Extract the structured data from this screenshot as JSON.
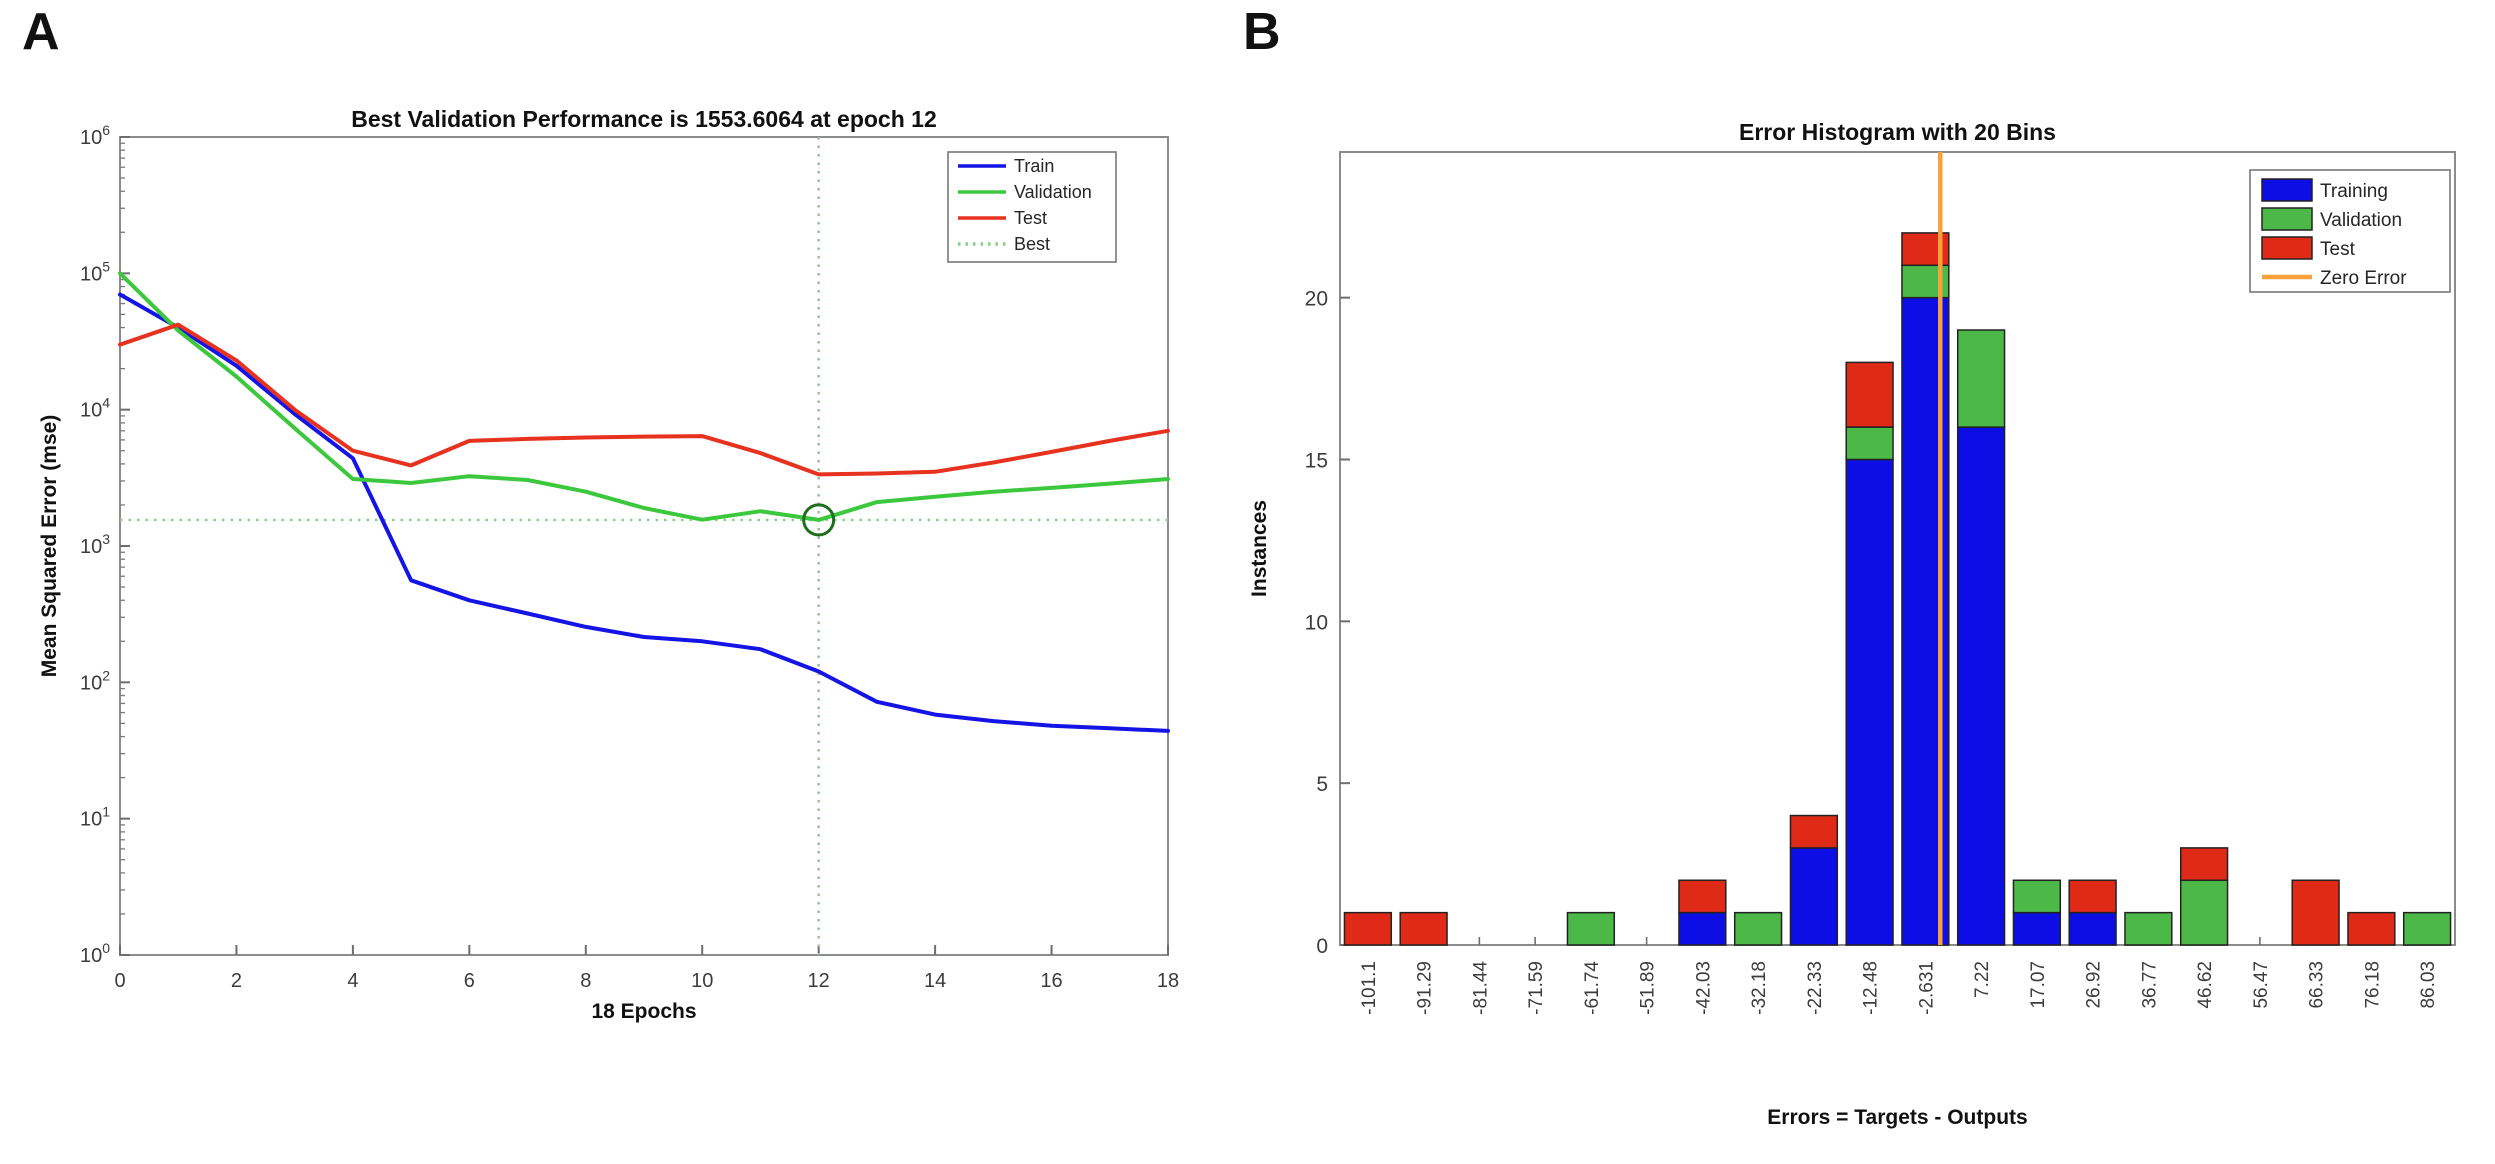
{
  "page": {
    "background": "#ffffff"
  },
  "chart_data": [
    {
      "panel_label": "A",
      "type": "line",
      "title": "Best Validation Performance is 1553.6064 at epoch 12",
      "xlabel": "18 Epochs",
      "ylabel": "Mean Squared Error  (mse)",
      "x_ticks": [
        0,
        2,
        4,
        6,
        8,
        10,
        12,
        14,
        16,
        18
      ],
      "xlim": [
        0,
        18
      ],
      "y_scale": "log10",
      "y_tick_exponents": [
        0,
        1,
        2,
        3,
        4,
        5,
        6
      ],
      "ylim": [
        1,
        1000000
      ],
      "epochs": [
        0,
        1,
        2,
        3,
        4,
        5,
        6,
        7,
        8,
        9,
        10,
        11,
        12,
        13,
        14,
        15,
        16,
        17,
        18
      ],
      "series": [
        {
          "name": "Train",
          "color": "#1414e6",
          "values": [
            70000,
            40000,
            21000,
            9300,
            4400,
            560,
            400,
            320,
            255,
            215,
            200,
            175,
            120,
            72,
            58,
            52,
            48,
            46,
            44
          ]
        },
        {
          "name": "Validation",
          "color": "#3cc83c",
          "values": [
            100000,
            38000,
            17500,
            7300,
            3100,
            2900,
            3250,
            3050,
            2500,
            1900,
            1560,
            1800,
            1553.6064,
            2100,
            2300,
            2500,
            2670,
            2870,
            3100
          ]
        },
        {
          "name": "Test",
          "color": "#e6321e",
          "values": [
            30000,
            42000,
            23000,
            10000,
            5000,
            3900,
            5900,
            6100,
            6250,
            6350,
            6400,
            4800,
            3350,
            3400,
            3500,
            4100,
            4900,
            5900,
            7000
          ]
        }
      ],
      "best": {
        "name": "Best",
        "value": 1553.6064,
        "epoch": 12,
        "line_color": "#84d284",
        "vline_color": "#9cba9c",
        "marker_color": "#1e6e1e"
      },
      "legend": {
        "entries": [
          "Train",
          "Validation",
          "Test",
          "Best"
        ],
        "position": "top-right"
      },
      "grid": false,
      "axis_color": "#8c8c8c",
      "tick_text_color": "#3c3c3c"
    },
    {
      "panel_label": "B",
      "type": "bar-stacked",
      "title": "Error Histogram with 20 Bins",
      "xlabel": "Errors = Targets - Outputs",
      "ylabel": "Instances",
      "bin_labels": [
        "-101.1",
        "-91.29",
        "-81.44",
        "-71.59",
        "-61.74",
        "-51.89",
        "-42.03",
        "-32.18",
        "-22.33",
        "-12.48",
        "-2.631",
        "7.22",
        "17.07",
        "26.92",
        "36.77",
        "46.62",
        "56.47",
        "66.33",
        "76.18",
        "86.03"
      ],
      "bin_centers": [
        -101.1,
        -91.29,
        -81.44,
        -71.59,
        -61.74,
        -51.89,
        -42.03,
        -32.18,
        -22.33,
        -12.48,
        -2.631,
        7.22,
        17.07,
        26.92,
        36.77,
        46.62,
        56.47,
        66.33,
        76.18,
        86.03
      ],
      "bin_spacing": 9.851,
      "y_ticks": [
        0,
        5,
        10,
        15,
        20
      ],
      "ylim": [
        0,
        24.5
      ],
      "series": [
        {
          "name": "Training",
          "color": "#0d0de6",
          "values": [
            0,
            0,
            0,
            0,
            0,
            0,
            1,
            0,
            3,
            15,
            20,
            16,
            1,
            1,
            0,
            0,
            0,
            0,
            0,
            0
          ]
        },
        {
          "name": "Validation",
          "color": "#4cb848",
          "values": [
            0,
            0,
            0,
            0,
            1,
            0,
            0,
            1,
            0,
            1,
            1,
            3,
            1,
            0,
            1,
            2,
            0,
            0,
            0,
            1
          ]
        },
        {
          "name": "Test",
          "color": "#e02a18",
          "values": [
            1,
            1,
            0,
            0,
            0,
            0,
            1,
            0,
            1,
            2,
            1,
            0,
            0,
            1,
            0,
            1,
            0,
            2,
            1,
            0
          ]
        }
      ],
      "zero_error": {
        "name": "Zero Error",
        "value": 0,
        "color": "#f8a13b"
      },
      "legend": {
        "entries": [
          "Training",
          "Validation",
          "Test",
          "Zero Error"
        ],
        "position": "top-right"
      },
      "bar_outline": "#222222",
      "axis_color": "#8c8c8c",
      "tick_text_color": "#3c3c3c"
    }
  ]
}
